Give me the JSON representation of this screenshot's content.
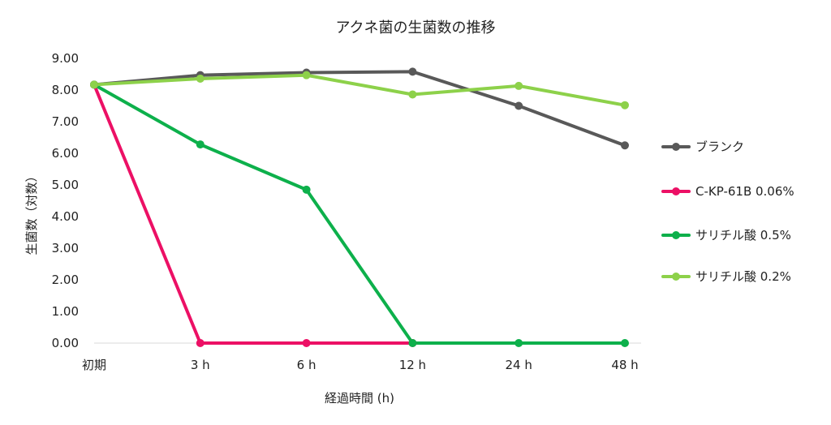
{
  "chart_data": {
    "type": "line",
    "title": "アクネ菌の生菌数の推移",
    "xlabel": "経過時間 (h)",
    "ylabel": "生菌数（対数）",
    "categories": [
      "初期",
      "3 h",
      "6 h",
      "12 h",
      "24 h",
      "48 h"
    ],
    "ylim": [
      0,
      9
    ],
    "yticks": [
      "0.00",
      "1.00",
      "2.00",
      "3.00",
      "4.00",
      "5.00",
      "6.00",
      "7.00",
      "8.00",
      "9.00"
    ],
    "grid": false,
    "legend_position": "right",
    "series": [
      {
        "name": "ブランク",
        "color": "#595959",
        "values": [
          8.17,
          8.47,
          8.55,
          8.58,
          7.5,
          6.25
        ]
      },
      {
        "name": "C-KP-61B 0.06%",
        "color": "#EC1065",
        "values": [
          8.17,
          0.0,
          0.0,
          0.0,
          null,
          null
        ]
      },
      {
        "name": "サリチル酸 0.5%",
        "color": "#0DB04B",
        "values": [
          8.17,
          6.28,
          4.85,
          0.0,
          0.0,
          0.0
        ]
      },
      {
        "name": "サリチル酸 0.2%",
        "color": "#8DD14A",
        "values": [
          8.17,
          8.36,
          8.47,
          7.86,
          8.13,
          7.52
        ]
      }
    ]
  }
}
